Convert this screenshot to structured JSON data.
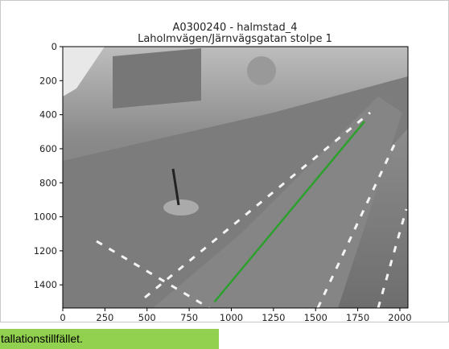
{
  "figure": {
    "title": [
      "A0300240 - halmstad_4",
      "Laholmvägen/Järnvägsgatan stolpe 1"
    ],
    "xlim": [
      0,
      2048
    ],
    "ylim": [
      1536,
      0
    ],
    "xticks": [
      0,
      250,
      500,
      750,
      1000,
      1250,
      1500,
      1750,
      2000
    ],
    "yticks": [
      0,
      200,
      400,
      600,
      800,
      1000,
      1200,
      1400
    ],
    "line": {
      "color": "#2ca02c",
      "x": [
        900,
        1790
      ],
      "y": [
        1500,
        440
      ]
    }
  },
  "caption": "tallationstillfället."
}
